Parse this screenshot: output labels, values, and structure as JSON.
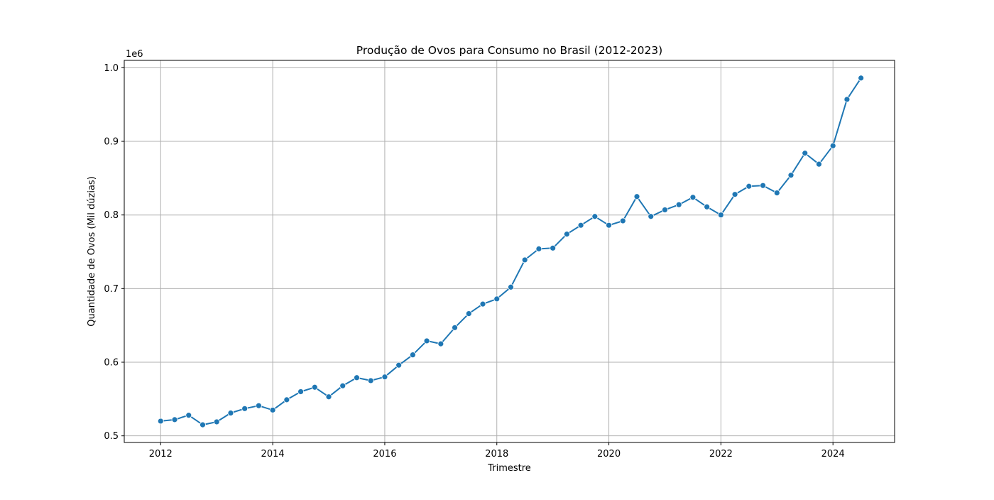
{
  "chart_data": {
    "type": "line",
    "title": "Produção de Ovos para Consumo no Brasil (2012-2023)",
    "xlabel": "Trimestre",
    "ylabel": "Quantidade de Ovos (Mil dúzias)",
    "y_offset_label": "1e6",
    "xlim": [
      2011.35,
      2025.1
    ],
    "ylim": [
      491000,
      1010000
    ],
    "xticks": [
      2012,
      2014,
      2016,
      2018,
      2020,
      2022,
      2024
    ],
    "xtick_labels": [
      "2012",
      "2014",
      "2016",
      "2018",
      "2020",
      "2022",
      "2024"
    ],
    "yticks": [
      500000,
      600000,
      700000,
      800000,
      900000,
      1000000
    ],
    "ytick_labels": [
      "0.5",
      "0.6",
      "0.7",
      "0.8",
      "0.9",
      "1.0"
    ],
    "grid": true,
    "line_color": "#1f77b4",
    "marker": "circle",
    "series": [
      {
        "x": [
          2012.0,
          2012.25,
          2012.5,
          2012.75,
          2013.0,
          2013.25,
          2013.5,
          2013.75,
          2014.0,
          2014.25,
          2014.5,
          2014.75,
          2015.0,
          2015.25,
          2015.5,
          2015.75,
          2016.0,
          2016.25,
          2016.5,
          2016.75,
          2017.0,
          2017.25,
          2017.5,
          2017.75,
          2018.0,
          2018.25,
          2018.5,
          2018.75,
          2019.0,
          2019.25,
          2019.5,
          2019.75,
          2020.0,
          2020.25,
          2020.5,
          2020.75,
          2021.0,
          2021.25,
          2021.5,
          2021.75,
          2022.0,
          2022.25,
          2022.5,
          2022.75,
          2023.0,
          2023.25,
          2023.5,
          2023.75,
          2024.0,
          2024.25,
          2024.5
        ],
        "values": [
          520000,
          522000,
          528000,
          515000,
          519000,
          531000,
          537000,
          541000,
          535000,
          549000,
          560000,
          566000,
          553000,
          568000,
          579000,
          575000,
          580000,
          596000,
          610000,
          629000,
          625000,
          647000,
          666000,
          679000,
          686000,
          702000,
          739000,
          754000,
          755000,
          774000,
          786000,
          798000,
          786000,
          792000,
          825000,
          798000,
          807000,
          814000,
          824000,
          811000,
          800000,
          828000,
          839000,
          840000,
          830000,
          854000,
          884000,
          869000,
          894000,
          957000,
          986000
        ]
      }
    ]
  }
}
